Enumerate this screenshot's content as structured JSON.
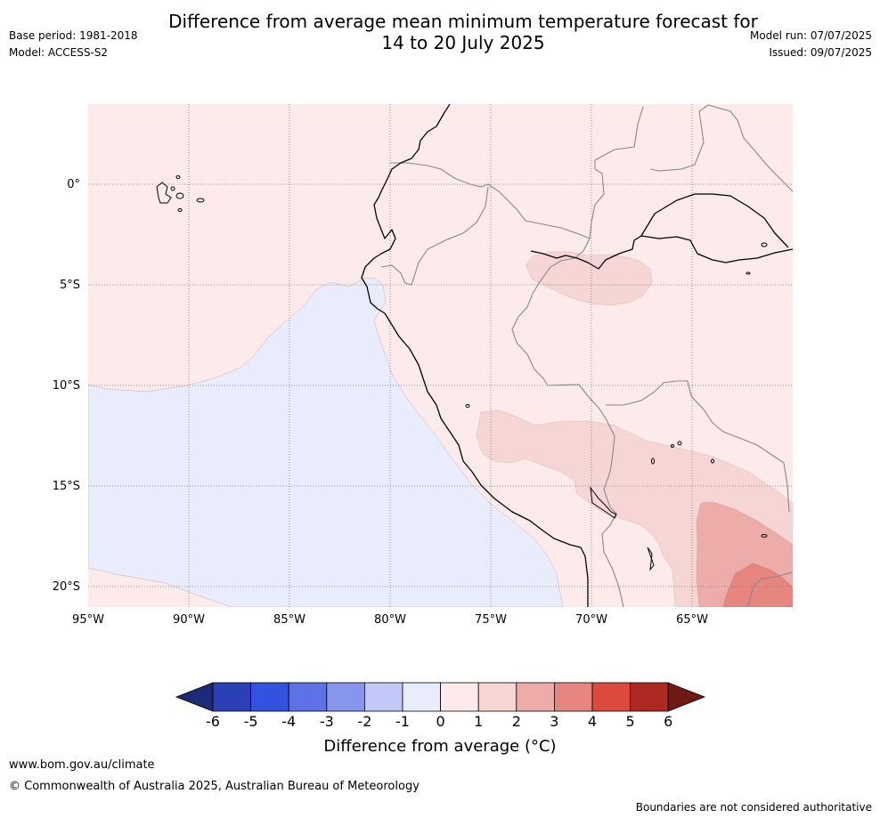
{
  "header": {
    "title_line1": "Difference from average mean minimum temperature forecast for",
    "title_line2": "14 to 20 July 2025",
    "base_period": "Base period: 1981-2018",
    "model": "Model: ACCESS-S2",
    "model_run": "Model run: 07/07/2025",
    "issued": "Issued: 09/07/2025"
  },
  "map": {
    "lat_labels": [
      "0°",
      "5°S",
      "10°S",
      "15°S",
      "20°S"
    ],
    "lon_labels": [
      "95°W",
      "90°W",
      "85°W",
      "80°W",
      "75°W",
      "70°W",
      "65°W"
    ],
    "colors": {
      "band_0_1": "#fcebea",
      "band_m1_0": "#e8ecfb",
      "band_1_2": "#f5d6d4",
      "band_2_3": "#edaca9",
      "band_3_4": "#e6867f",
      "coast": "#000000",
      "border": "#888888",
      "grid": "#777777"
    }
  },
  "colorbar": {
    "label": "Difference from average (°C)",
    "ticks": [
      "-6",
      "-5",
      "-4",
      "-3",
      "-2",
      "-1",
      "0",
      "1",
      "2",
      "3",
      "4",
      "5",
      "6"
    ],
    "under_color": "#1c2a78",
    "over_color": "#6e1a14",
    "colors": [
      "#2a40b4",
      "#3352e0",
      "#5d72e6",
      "#8796ec",
      "#c3c9f6",
      "#e8ecfb",
      "#fcebea",
      "#f5d6d4",
      "#edaca9",
      "#e6867f",
      "#dc4a3e",
      "#ad2a22"
    ]
  },
  "footer": {
    "website": "www.bom.gov.au/climate",
    "copyright": "© Commonwealth of Australia 2025, Australian Bureau of Meteorology",
    "disclaimer": "Boundaries are not considered authoritative"
  }
}
